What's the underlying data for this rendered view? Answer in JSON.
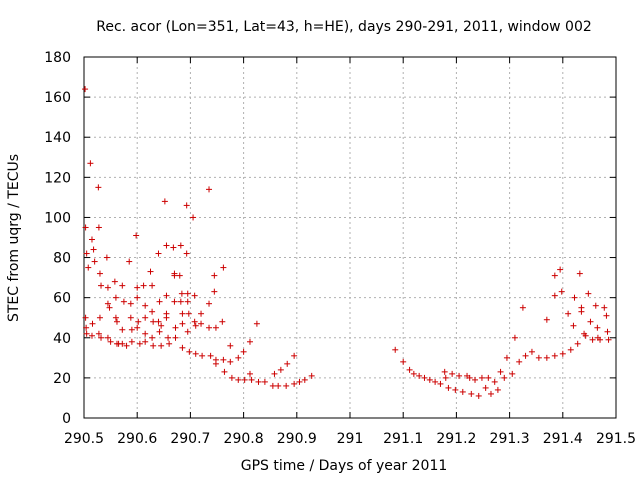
{
  "chart_data": {
    "type": "scatter",
    "title": "Rec. acor (Lon=351, Lat=43, h=HE), days 290-291, 2011, window 002",
    "xlabel": "GPS time / Days of year 2011",
    "ylabel": "STEC from uqrg / TECUs",
    "xlim": [
      290.5,
      291.5
    ],
    "ylim": [
      0,
      180
    ],
    "x_ticks": [
      "290.5",
      "290.6",
      "290.7",
      "290.8",
      "290.9",
      "291",
      "291.1",
      "291.2",
      "291.3",
      "291.4",
      "291.5"
    ],
    "y_ticks": [
      "0",
      "20",
      "40",
      "60",
      "80",
      "100",
      "120",
      "140",
      "160",
      "180"
    ],
    "grid": true,
    "marker": "+",
    "color": "#cc0000",
    "series": [
      {
        "points": [
          [
            290.502,
            164
          ],
          [
            290.503,
            95
          ],
          [
            290.505,
            82
          ],
          [
            290.508,
            75
          ],
          [
            290.503,
            50
          ],
          [
            290.504,
            45
          ],
          [
            290.505,
            42
          ],
          [
            290.512,
            127
          ],
          [
            290.515,
            89
          ],
          [
            290.518,
            84
          ],
          [
            290.52,
            78
          ],
          [
            290.516,
            47
          ],
          [
            290.515,
            41
          ],
          [
            290.527,
            115
          ],
          [
            290.528,
            95
          ],
          [
            290.53,
            72
          ],
          [
            290.532,
            66
          ],
          [
            290.53,
            50
          ],
          [
            290.528,
            42
          ],
          [
            290.532,
            40
          ],
          [
            290.543,
            80
          ],
          [
            290.545,
            65
          ],
          [
            290.545,
            57
          ],
          [
            290.548,
            55
          ],
          [
            290.545,
            40
          ],
          [
            290.55,
            38
          ],
          [
            290.558,
            68
          ],
          [
            290.56,
            60
          ],
          [
            290.56,
            50
          ],
          [
            290.562,
            48
          ],
          [
            290.562,
            37
          ],
          [
            290.565,
            37
          ],
          [
            290.572,
            66
          ],
          [
            290.575,
            58
          ],
          [
            290.572,
            44
          ],
          [
            290.572,
            37
          ],
          [
            290.58,
            36
          ],
          [
            290.585,
            78
          ],
          [
            290.588,
            57
          ],
          [
            290.588,
            50
          ],
          [
            290.59,
            44
          ],
          [
            290.59,
            38
          ],
          [
            290.598,
            91
          ],
          [
            290.6,
            65
          ],
          [
            290.6,
            60
          ],
          [
            290.602,
            48
          ],
          [
            290.6,
            45
          ],
          [
            290.605,
            37
          ],
          [
            290.612,
            66
          ],
          [
            290.615,
            56
          ],
          [
            290.615,
            50
          ],
          [
            290.615,
            42
          ],
          [
            290.615,
            38
          ],
          [
            290.625,
            73
          ],
          [
            290.628,
            66
          ],
          [
            290.628,
            53
          ],
          [
            290.63,
            48
          ],
          [
            290.628,
            40
          ],
          [
            290.63,
            36
          ],
          [
            290.64,
            82
          ],
          [
            290.642,
            58
          ],
          [
            290.64,
            48
          ],
          [
            290.645,
            46
          ],
          [
            290.642,
            43
          ],
          [
            290.645,
            36
          ],
          [
            290.652,
            108
          ],
          [
            290.655,
            86
          ],
          [
            290.655,
            61
          ],
          [
            290.655,
            52
          ],
          [
            290.655,
            50
          ],
          [
            290.658,
            40
          ],
          [
            290.66,
            37
          ],
          [
            290.668,
            85
          ],
          [
            290.67,
            72
          ],
          [
            290.67,
            71
          ],
          [
            290.67,
            58
          ],
          [
            290.672,
            45
          ],
          [
            290.672,
            40
          ],
          [
            290.682,
            86
          ],
          [
            290.68,
            71
          ],
          [
            290.684,
            62
          ],
          [
            290.682,
            58
          ],
          [
            290.685,
            52
          ],
          [
            290.685,
            47
          ],
          [
            290.685,
            35
          ],
          [
            290.693,
            106
          ],
          [
            290.693,
            82
          ],
          [
            290.695,
            62
          ],
          [
            290.695,
            58
          ],
          [
            290.697,
            52
          ],
          [
            290.695,
            43
          ],
          [
            290.698,
            33
          ],
          [
            290.705,
            100
          ],
          [
            290.708,
            61
          ],
          [
            290.708,
            48
          ],
          [
            290.71,
            46
          ],
          [
            290.71,
            32
          ],
          [
            290.72,
            52
          ],
          [
            290.72,
            47
          ],
          [
            290.722,
            31
          ],
          [
            290.735,
            114
          ],
          [
            290.735,
            57
          ],
          [
            290.735,
            45
          ],
          [
            290.738,
            31
          ],
          [
            290.745,
            71
          ],
          [
            290.745,
            63
          ],
          [
            290.748,
            45
          ],
          [
            290.748,
            29
          ],
          [
            290.748,
            27
          ],
          [
            290.762,
            75
          ],
          [
            290.76,
            48
          ],
          [
            290.762,
            29
          ],
          [
            290.764,
            23
          ],
          [
            290.775,
            36
          ],
          [
            290.775,
            28
          ],
          [
            290.778,
            20
          ],
          [
            290.79,
            30
          ],
          [
            290.79,
            19
          ],
          [
            290.8,
            33
          ],
          [
            290.802,
            19
          ],
          [
            290.812,
            38
          ],
          [
            290.812,
            22
          ],
          [
            290.815,
            19
          ],
          [
            290.825,
            47
          ],
          [
            290.828,
            18
          ],
          [
            290.84,
            18
          ],
          [
            290.855,
            16
          ],
          [
            290.858,
            22
          ],
          [
            290.865,
            16
          ],
          [
            290.87,
            24
          ],
          [
            290.88,
            16
          ],
          [
            290.882,
            27
          ],
          [
            290.895,
            17
          ],
          [
            290.895,
            31
          ],
          [
            290.905,
            18
          ],
          [
            290.915,
            19
          ],
          [
            290.928,
            21
          ]
        ]
      },
      {
        "points": [
          [
            291.085,
            34
          ],
          [
            291.1,
            28
          ],
          [
            291.112,
            24
          ],
          [
            291.12,
            22
          ],
          [
            291.13,
            21
          ],
          [
            291.14,
            20
          ],
          [
            291.15,
            19
          ],
          [
            291.16,
            18
          ],
          [
            291.17,
            17
          ],
          [
            291.178,
            23
          ],
          [
            291.18,
            20
          ],
          [
            291.185,
            15
          ],
          [
            291.192,
            22
          ],
          [
            291.198,
            14
          ],
          [
            291.205,
            21
          ],
          [
            291.212,
            13
          ],
          [
            291.22,
            21
          ],
          [
            291.225,
            20
          ],
          [
            291.228,
            12
          ],
          [
            291.235,
            19
          ],
          [
            291.242,
            11
          ],
          [
            291.248,
            20
          ],
          [
            291.255,
            15
          ],
          [
            291.26,
            20
          ],
          [
            291.265,
            12
          ],
          [
            291.272,
            18
          ],
          [
            291.278,
            14
          ],
          [
            291.283,
            23
          ],
          [
            291.29,
            20
          ],
          [
            291.295,
            30
          ],
          [
            291.305,
            22
          ],
          [
            291.31,
            40
          ],
          [
            291.318,
            28
          ],
          [
            291.325,
            55
          ],
          [
            291.33,
            31
          ],
          [
            291.342,
            33
          ],
          [
            291.355,
            30
          ],
          [
            291.37,
            49
          ],
          [
            291.37,
            30
          ],
          [
            291.385,
            61
          ],
          [
            291.385,
            71
          ],
          [
            291.385,
            31
          ],
          [
            291.395,
            74
          ],
          [
            291.398,
            63
          ],
          [
            291.4,
            32
          ],
          [
            291.41,
            52
          ],
          [
            291.415,
            34
          ],
          [
            291.422,
            60
          ],
          [
            291.42,
            46
          ],
          [
            291.428,
            37
          ],
          [
            291.432,
            72
          ],
          [
            291.435,
            55
          ],
          [
            291.435,
            53
          ],
          [
            291.44,
            42
          ],
          [
            291.443,
            41
          ],
          [
            291.448,
            62
          ],
          [
            291.452,
            48
          ],
          [
            291.456,
            39
          ],
          [
            291.462,
            56
          ],
          [
            291.465,
            45
          ],
          [
            291.466,
            40
          ],
          [
            291.47,
            39
          ],
          [
            291.478,
            55
          ],
          [
            291.482,
            51
          ],
          [
            291.484,
            43
          ],
          [
            291.486,
            39
          ]
        ]
      }
    ]
  }
}
